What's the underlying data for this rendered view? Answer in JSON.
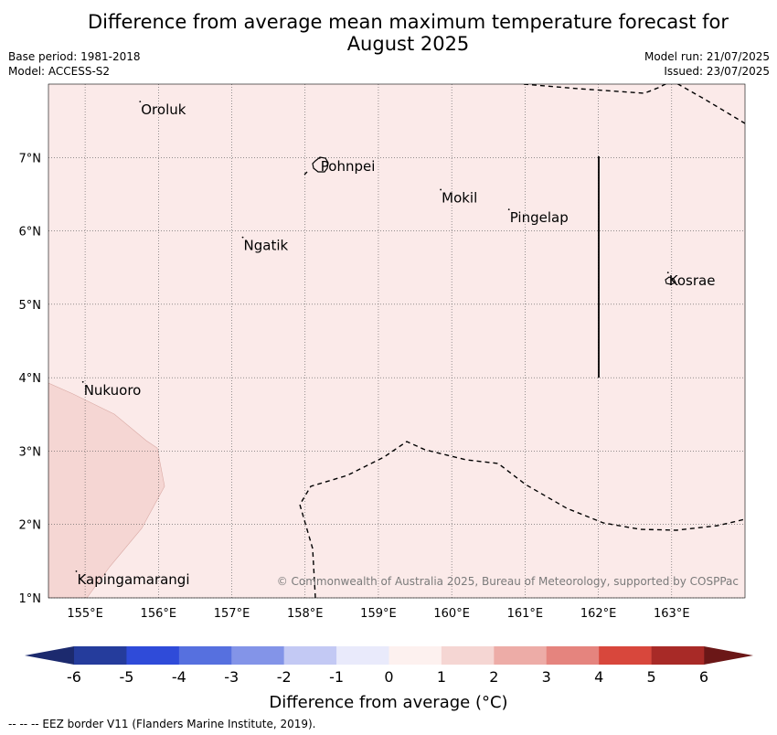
{
  "title": {
    "line1": "Difference from average mean maximum temperature forecast for",
    "line2": "August 2025"
  },
  "meta": {
    "base_period": "Base period: 1981-2018",
    "model": "Model: ACCESS-S2",
    "model_run": "Model run: 21/07/2025",
    "issued": "Issued: 23/07/2025"
  },
  "map": {
    "extent": {
      "lon_min": 154.5,
      "lon_max": 164.0,
      "lat_min": 1.0,
      "lat_max": 8.0
    },
    "lat_ticks": [
      {
        "value": 1,
        "label": "1°N"
      },
      {
        "value": 2,
        "label": "2°N"
      },
      {
        "value": 3,
        "label": "3°N"
      },
      {
        "value": 4,
        "label": "4°N"
      },
      {
        "value": 5,
        "label": "5°N"
      },
      {
        "value": 6,
        "label": "6°N"
      },
      {
        "value": 7,
        "label": "7°N"
      }
    ],
    "lon_ticks": [
      {
        "value": 155,
        "label": "155°E"
      },
      {
        "value": 156,
        "label": "156°E"
      },
      {
        "value": 157,
        "label": "157°E"
      },
      {
        "value": 158,
        "label": "158°E"
      },
      {
        "value": 159,
        "label": "159°E"
      },
      {
        "value": 160,
        "label": "160°E"
      },
      {
        "value": 161,
        "label": "161°E"
      },
      {
        "value": 162,
        "label": "162°E"
      },
      {
        "value": 163,
        "label": "163°E"
      }
    ],
    "background_color": "#fbeae9",
    "anomaly_region_color": "#f5d6d3",
    "islands": [
      {
        "name": "Oroluk",
        "lon": 155.75,
        "lat": 7.65
      },
      {
        "name": "Pohnpei",
        "lon": 158.2,
        "lat": 6.88
      },
      {
        "name": "Mokil",
        "lon": 159.85,
        "lat": 6.45
      },
      {
        "name": "Pingelap",
        "lon": 160.78,
        "lat": 6.18
      },
      {
        "name": "Ngatik",
        "lon": 157.15,
        "lat": 5.8
      },
      {
        "name": "Kosrae",
        "lon": 162.95,
        "lat": 5.32
      },
      {
        "name": "Nukuoro",
        "lon": 154.97,
        "lat": 3.83
      },
      {
        "name": "Kapingamarangi",
        "lon": 154.88,
        "lat": 1.25
      }
    ],
    "credit": "© Commonwealth of Australia 2025, Bureau of Meteorology, supported by COSPPac"
  },
  "colorbar": {
    "title": "Difference from average (°C)",
    "ticks": [
      "-6",
      "-5",
      "-4",
      "-3",
      "-2",
      "-1",
      "0",
      "1",
      "2",
      "3",
      "4",
      "5",
      "6"
    ],
    "colors": [
      "#253c9c",
      "#2f4bd9",
      "#5670df",
      "#8394e8",
      "#c3c9f4",
      "#e9eafb",
      "#fdf1ef",
      "#f5d6d3",
      "#edaca7",
      "#e5847e",
      "#d8473c",
      "#a82a27"
    ],
    "extend_low": "#1c2a6e",
    "extend_high": "#6b1717"
  },
  "footer": "--  --  -- EEZ border V11 (Flanders Marine Institute, 2019)."
}
